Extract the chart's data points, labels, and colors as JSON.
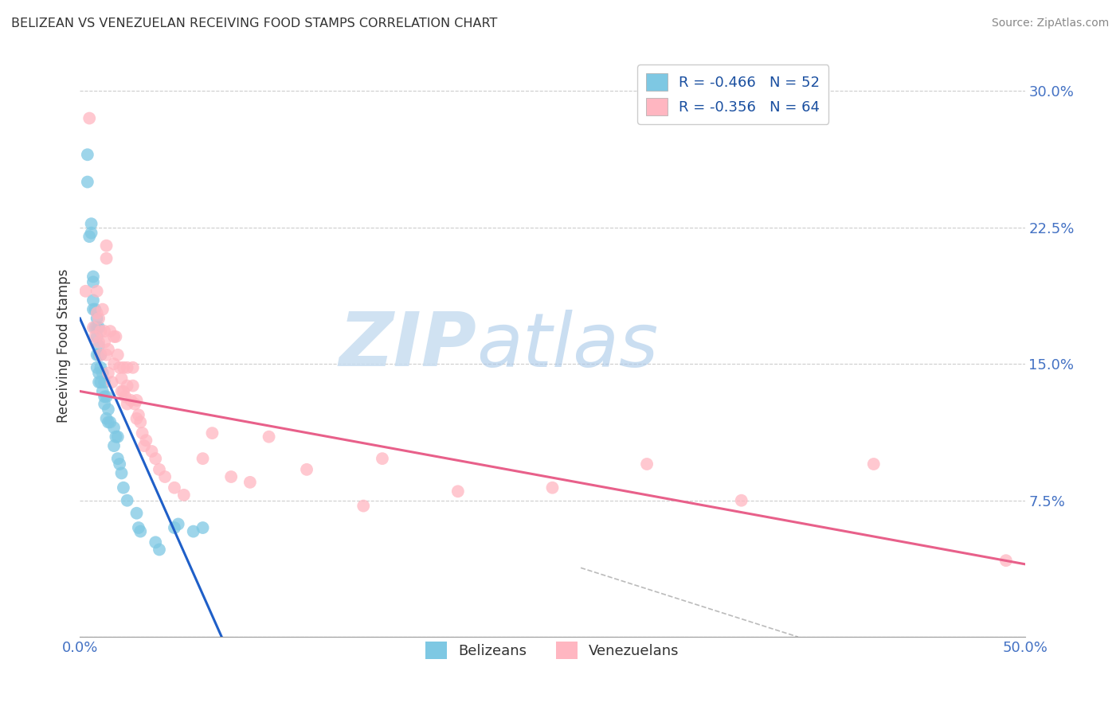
{
  "title": "BELIZEAN VS VENEZUELAN RECEIVING FOOD STAMPS CORRELATION CHART",
  "source": "Source: ZipAtlas.com",
  "ylabel": "Receiving Food Stamps",
  "xmin": 0.0,
  "xmax": 0.5,
  "ymin": 0.0,
  "ymax": 0.32,
  "yticks": [
    0.0,
    0.075,
    0.15,
    0.225,
    0.3
  ],
  "ytick_labels": [
    "",
    "7.5%",
    "15.0%",
    "22.5%",
    "30.0%"
  ],
  "xticks": [
    0.0,
    0.1,
    0.2,
    0.3,
    0.4,
    0.5
  ],
  "xtick_labels": [
    "0.0%",
    "",
    "",
    "",
    "",
    "50.0%"
  ],
  "legend_blue_r": "R = -0.466",
  "legend_blue_n": "N = 52",
  "legend_pink_r": "R = -0.356",
  "legend_pink_n": "N = 64",
  "belizean_color": "#7ec8e3",
  "venezuelan_color": "#ffb6c1",
  "regression_blue": "#1f5fc8",
  "regression_pink": "#e8608a",
  "regression_dashed": "#bbbbbb",
  "watermark_zip": "ZIP",
  "watermark_atlas": "atlas",
  "belizeans_x": [
    0.004,
    0.004,
    0.005,
    0.006,
    0.006,
    0.007,
    0.007,
    0.007,
    0.007,
    0.008,
    0.008,
    0.009,
    0.009,
    0.009,
    0.009,
    0.009,
    0.01,
    0.01,
    0.01,
    0.01,
    0.01,
    0.011,
    0.011,
    0.011,
    0.012,
    0.012,
    0.013,
    0.013,
    0.013,
    0.014,
    0.014,
    0.015,
    0.015,
    0.016,
    0.018,
    0.018,
    0.019,
    0.02,
    0.02,
    0.021,
    0.022,
    0.023,
    0.025,
    0.03,
    0.031,
    0.032,
    0.04,
    0.042,
    0.05,
    0.052,
    0.06,
    0.065
  ],
  "belizeans_y": [
    0.265,
    0.25,
    0.22,
    0.227,
    0.222,
    0.198,
    0.195,
    0.185,
    0.18,
    0.18,
    0.17,
    0.175,
    0.17,
    0.165,
    0.155,
    0.148,
    0.17,
    0.16,
    0.155,
    0.145,
    0.14,
    0.155,
    0.148,
    0.14,
    0.145,
    0.135,
    0.14,
    0.132,
    0.128,
    0.132,
    0.12,
    0.125,
    0.118,
    0.118,
    0.115,
    0.105,
    0.11,
    0.11,
    0.098,
    0.095,
    0.09,
    0.082,
    0.075,
    0.068,
    0.06,
    0.058,
    0.052,
    0.048,
    0.06,
    0.062,
    0.058,
    0.06
  ],
  "venezuelans_x": [
    0.003,
    0.005,
    0.007,
    0.008,
    0.009,
    0.009,
    0.01,
    0.01,
    0.011,
    0.011,
    0.012,
    0.013,
    0.013,
    0.014,
    0.014,
    0.014,
    0.015,
    0.015,
    0.016,
    0.017,
    0.018,
    0.018,
    0.019,
    0.02,
    0.021,
    0.022,
    0.022,
    0.023,
    0.023,
    0.024,
    0.025,
    0.025,
    0.025,
    0.027,
    0.028,
    0.028,
    0.029,
    0.03,
    0.03,
    0.031,
    0.032,
    0.033,
    0.034,
    0.035,
    0.038,
    0.04,
    0.042,
    0.045,
    0.05,
    0.055,
    0.065,
    0.07,
    0.08,
    0.09,
    0.1,
    0.12,
    0.15,
    0.16,
    0.2,
    0.25,
    0.3,
    0.35,
    0.42,
    0.49
  ],
  "venezuelans_y": [
    0.19,
    0.285,
    0.17,
    0.165,
    0.19,
    0.178,
    0.175,
    0.162,
    0.168,
    0.155,
    0.18,
    0.168,
    0.162,
    0.215,
    0.208,
    0.155,
    0.158,
    0.145,
    0.168,
    0.14,
    0.15,
    0.165,
    0.165,
    0.155,
    0.148,
    0.142,
    0.135,
    0.148,
    0.135,
    0.132,
    0.148,
    0.138,
    0.128,
    0.13,
    0.148,
    0.138,
    0.128,
    0.13,
    0.12,
    0.122,
    0.118,
    0.112,
    0.105,
    0.108,
    0.102,
    0.098,
    0.092,
    0.088,
    0.082,
    0.078,
    0.098,
    0.112,
    0.088,
    0.085,
    0.11,
    0.092,
    0.072,
    0.098,
    0.08,
    0.082,
    0.095,
    0.075,
    0.095,
    0.042
  ],
  "blue_line_x0": 0.0,
  "blue_line_y0": 0.175,
  "blue_line_x1": 0.075,
  "blue_line_y1": 0.0,
  "pink_line_x0": 0.0,
  "pink_line_y0": 0.135,
  "pink_line_x1": 0.5,
  "pink_line_y1": 0.04,
  "dash_line_x0": 0.265,
  "dash_line_y0": 0.038,
  "dash_line_x1": 0.38,
  "dash_line_y1": 0.0
}
